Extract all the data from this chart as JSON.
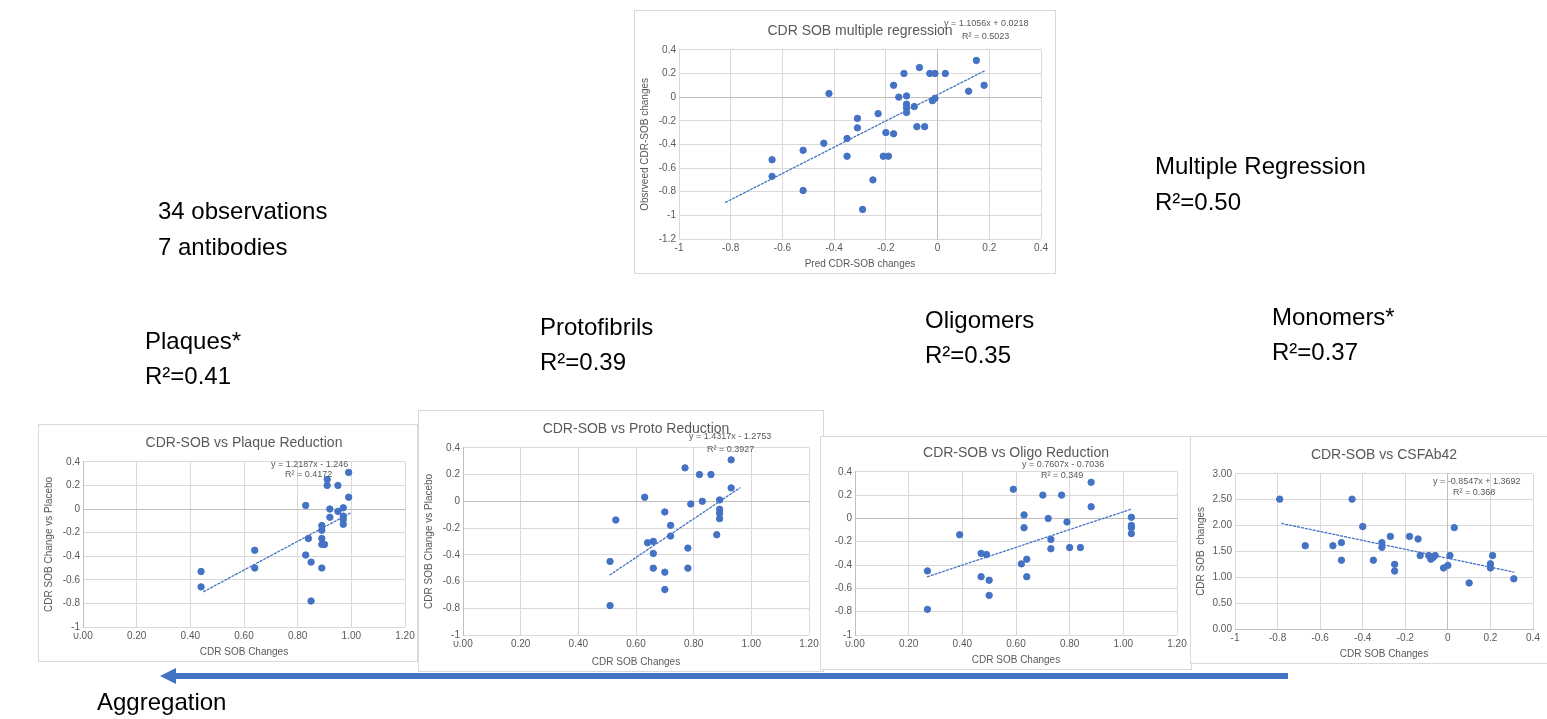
{
  "chart_data": [
    {
      "type": "scatter",
      "title": "CDR SOB multiple regression",
      "xlabel": "Pred CDR-SOB changes",
      "ylabel": "Obsrveed CDR-SOB changes",
      "grid": true,
      "legend": false,
      "xlim": [
        -1,
        0.4
      ],
      "xticks": [
        -1,
        -0.8,
        -0.6,
        -0.4,
        -0.2,
        0,
        0.2,
        0.4
      ],
      "ylim": [
        -1.2,
        0.4
      ],
      "yticks": [
        -1.2,
        -1,
        -0.8,
        -0.6,
        -0.4,
        -0.2,
        0,
        0.2,
        0.4
      ],
      "series": [
        {
          "type": "scatter",
          "marker": "circle",
          "color": "#4472c4",
          "x": [
            -0.42,
            -0.64,
            -0.64,
            -0.52,
            -0.52,
            -0.44,
            -0.35,
            -0.35,
            -0.31,
            -0.31,
            -0.29,
            -0.25,
            -0.23,
            -0.21,
            -0.19,
            -0.2,
            -0.17,
            -0.17,
            -0.15,
            -0.13,
            -0.12,
            -0.12,
            -0.12,
            -0.12,
            -0.09,
            -0.08,
            -0.05,
            -0.07,
            -0.03,
            -0.01,
            -0.02,
            -0.01,
            0.03,
            0.12,
            0.15,
            0.18
          ],
          "values": [
            0.03,
            -0.53,
            -0.67,
            -0.45,
            -0.79,
            -0.39,
            -0.35,
            -0.5,
            -0.18,
            -0.26,
            -0.95,
            -0.7,
            -0.14,
            -0.5,
            -0.5,
            -0.3,
            -0.31,
            0.1,
            0,
            0.2,
            0.01,
            -0.06,
            -0.09,
            -0.13,
            -0.08,
            -0.25,
            -0.25,
            0.25,
            0.2,
            0.2,
            -0.03,
            -0.01,
            0.2,
            0.05,
            0.31,
            0.1
          ]
        },
        {
          "type": "line",
          "color": "#4472c4",
          "line_style": "dotted",
          "x": [
            -0.82,
            0.18
          ],
          "values": [
            -0.89,
            0.22
          ]
        }
      ],
      "annotations": [
        "y = 1.1056x + 0.0218",
        "R² = 0.5023",
        "Multiple Regression",
        "R²=0.50",
        "34 observations",
        "7 antibodies"
      ]
    },
    {
      "type": "scatter",
      "title": "CDR-SOB vs Plaque Reduction",
      "xlabel": "CDR SOB Changes",
      "ylabel": "CDR SOB Change vs Placebo",
      "grid": true,
      "legend": false,
      "xlim": [
        0,
        1.2
      ],
      "xticks": [
        {
          "value": 0,
          "label": "0.00"
        },
        {
          "value": 0.2,
          "label": "0.20"
        },
        {
          "value": 0.4,
          "label": "0.40"
        },
        {
          "value": 0.6,
          "label": "0.60"
        },
        {
          "value": 0.8,
          "label": "0.80"
        },
        {
          "value": 1,
          "label": "1.00"
        },
        {
          "value": 1.2,
          "label": "1.20"
        }
      ],
      "ylim": [
        -1,
        0.4
      ],
      "yticks": [
        -1,
        -0.8,
        -0.6,
        -0.4,
        -0.2,
        0,
        0.2,
        0.4
      ],
      "series": [
        {
          "type": "scatter",
          "marker": "circle",
          "color": "#4472c4",
          "x": [
            0.44,
            0.44,
            0.64,
            0.64,
            0.83,
            0.84,
            0.83,
            0.85,
            0.85,
            0.89,
            0.89,
            0.89,
            0.89,
            0.89,
            0.9,
            0.91,
            0.91,
            0.92,
            0.92,
            0.95,
            0.95,
            0.97,
            0.97,
            0.97,
            0.97,
            0.99,
            0.99
          ],
          "values": [
            -0.53,
            -0.66,
            -0.35,
            -0.5,
            0.03,
            -0.25,
            -0.39,
            -0.45,
            -0.78,
            -0.5,
            -0.3,
            -0.25,
            -0.18,
            -0.14,
            -0.3,
            0.25,
            0.2,
            0,
            -0.07,
            0.2,
            -0.02,
            0.01,
            -0.06,
            -0.09,
            -0.13,
            0.31,
            0.1
          ]
        },
        {
          "type": "line",
          "color": "#4472c4",
          "line_style": "dotted",
          "x": [
            0.45,
            1
          ],
          "values": [
            -0.7,
            -0.03
          ]
        }
      ],
      "annotations": [
        "y = 1.2187x - 1.246",
        "R² = 0.4172",
        "Plaques*",
        "R²=0.41",
        "Aggregation"
      ]
    },
    {
      "type": "scatter",
      "title": "CDR-SOB vs Proto Reduction",
      "xlabel": "CDR SOB Changes",
      "ylabel": "CDR SOB Change vs Placebo",
      "grid": true,
      "legend": false,
      "xlim": [
        0,
        1.2
      ],
      "xticks": [
        {
          "value": 0,
          "label": "0.00"
        },
        {
          "value": 0.2,
          "label": "0.20"
        },
        {
          "value": 0.4,
          "label": "0.40"
        },
        {
          "value": 0.6,
          "label": "0.60"
        },
        {
          "value": 0.8,
          "label": "0.80"
        },
        {
          "value": 1,
          "label": "1.00"
        },
        {
          "value": 1.2,
          "label": "1.20"
        }
      ],
      "ylim": [
        -1,
        0.4
      ],
      "yticks": [
        -1,
        -0.8,
        -0.6,
        -0.4,
        -0.2,
        0,
        0.2,
        0.4
      ],
      "series": [
        {
          "type": "scatter",
          "marker": "circle",
          "color": "#4472c4",
          "x": [
            0.51,
            0.51,
            0.53,
            0.63,
            0.64,
            0.66,
            0.66,
            0.66,
            0.7,
            0.7,
            0.7,
            0.72,
            0.72,
            0.77,
            0.78,
            0.78,
            0.79,
            0.82,
            0.83,
            0.86,
            0.88,
            0.89,
            0.89,
            0.89,
            0.89,
            0.93,
            0.93
          ],
          "values": [
            -0.45,
            -0.78,
            -0.14,
            0.03,
            -0.31,
            -0.3,
            -0.39,
            -0.5,
            -0.08,
            -0.53,
            -0.66,
            -0.18,
            -0.26,
            0.25,
            -0.35,
            -0.5,
            -0.02,
            0.2,
            0,
            0.2,
            -0.25,
            0.01,
            -0.06,
            -0.09,
            -0.13,
            0.31,
            0.1
          ]
        },
        {
          "type": "line",
          "color": "#4472c4",
          "line_style": "dotted",
          "x": [
            0.51,
            0.96
          ],
          "values": [
            -0.55,
            0.1
          ]
        }
      ],
      "annotations": [
        "y = 1.4317x - 1.2753",
        "R² = 0.3927",
        "Protofibrils",
        "R²=0.39"
      ]
    },
    {
      "type": "scatter",
      "title": "CDR-SOB vs Oligo Reduction",
      "xlabel": "CDR SOB Changes",
      "grid": true,
      "legend": false,
      "xlim": [
        0,
        1.2
      ],
      "xticks": [
        {
          "value": 0,
          "label": "0.00"
        },
        {
          "value": 0.2,
          "label": "0.20"
        },
        {
          "value": 0.4,
          "label": "0.40"
        },
        {
          "value": 0.6,
          "label": "0.60"
        },
        {
          "value": 0.8,
          "label": "0.80"
        },
        {
          "value": 1,
          "label": "1.00"
        },
        {
          "value": 1.2,
          "label": "1.20"
        }
      ],
      "ylim": [
        -1,
        0.4
      ],
      "yticks": [
        -1,
        -0.8,
        -0.6,
        -0.4,
        -0.2,
        0,
        0.2,
        0.4
      ],
      "series": [
        {
          "type": "scatter",
          "marker": "circle",
          "color": "#4472c4",
          "x": [
            0.27,
            0.27,
            0.39,
            0.47,
            0.49,
            0.47,
            0.5,
            0.5,
            0.59,
            0.63,
            0.63,
            0.62,
            0.64,
            0.64,
            0.7,
            0.72,
            0.73,
            0.73,
            0.77,
            0.79,
            0.8,
            0.84,
            0.88,
            0.88,
            1.03,
            1.03,
            1.03,
            1.03
          ],
          "values": [
            -0.45,
            -0.78,
            -0.14,
            -0.3,
            -0.31,
            -0.5,
            -0.53,
            -0.66,
            0.25,
            -0.08,
            0.03,
            -0.39,
            -0.35,
            -0.5,
            0.2,
            0,
            -0.18,
            -0.26,
            0.2,
            -0.03,
            -0.25,
            -0.25,
            0.31,
            0.1,
            0.01,
            -0.06,
            -0.08,
            -0.13
          ]
        },
        {
          "type": "line",
          "color": "#4472c4",
          "line_style": "dotted",
          "x": [
            0.27,
            1.03
          ],
          "values": [
            -0.5,
            0.08
          ]
        }
      ],
      "annotations": [
        "y = 0.7607x - 0.7036",
        "R² = 0.349",
        "Oligomers",
        "R²=0.35"
      ]
    },
    {
      "type": "scatter",
      "title": "CDR-SOB vs CSFAb42",
      "xlabel": "CDR SOB Changes",
      "ylabel": "CDR SOB  changes",
      "grid": true,
      "legend": false,
      "xlim": [
        -1,
        0.4
      ],
      "xticks": [
        -1,
        -0.8,
        -0.6,
        -0.4,
        -0.2,
        0,
        0.2,
        0.4
      ],
      "ylim": [
        0,
        3
      ],
      "yticks": [
        {
          "value": 0,
          "label": "0.00"
        },
        {
          "value": 0.5,
          "label": "0.50"
        },
        {
          "value": 1,
          "label": "1.00"
        },
        {
          "value": 1.5,
          "label": "1.50"
        },
        {
          "value": 2,
          "label": "2.00"
        },
        {
          "value": 2.5,
          "label": "2.50"
        },
        {
          "value": 3,
          "label": "3.00"
        }
      ],
      "series": [
        {
          "type": "scatter",
          "marker": "circle",
          "color": "#4472c4",
          "x": [
            -0.79,
            -0.67,
            -0.54,
            -0.5,
            -0.5,
            -0.45,
            -0.4,
            -0.35,
            -0.31,
            -0.31,
            -0.27,
            -0.25,
            -0.25,
            -0.18,
            -0.14,
            -0.13,
            -0.09,
            -0.08,
            -0.07,
            -0.06,
            -0.02,
            0,
            0.01,
            0.03,
            0.1,
            0.2,
            0.2,
            0.21,
            0.31
          ],
          "values": [
            2.51,
            1.61,
            1.61,
            1.67,
            1.33,
            2.51,
            1.98,
            1.33,
            1.58,
            1.67,
            1.79,
            1.25,
            1.12,
            1.79,
            1.74,
            1.42,
            1.42,
            1.35,
            1.38,
            1.42,
            1.18,
            1.23,
            1.42,
            1.96,
            0.89,
            1.26,
            1.18,
            1.42,
            0.97
          ]
        },
        {
          "type": "line",
          "color": "#4472c4",
          "line_style": "dotted",
          "x": [
            -0.78,
            0.31
          ],
          "values": [
            2.04,
            1.1
          ]
        }
      ],
      "annotations": [
        "y = -0.8547x + 1.3692",
        "R² = 0.368",
        "Monomers*",
        "R²=0.37"
      ]
    }
  ]
}
